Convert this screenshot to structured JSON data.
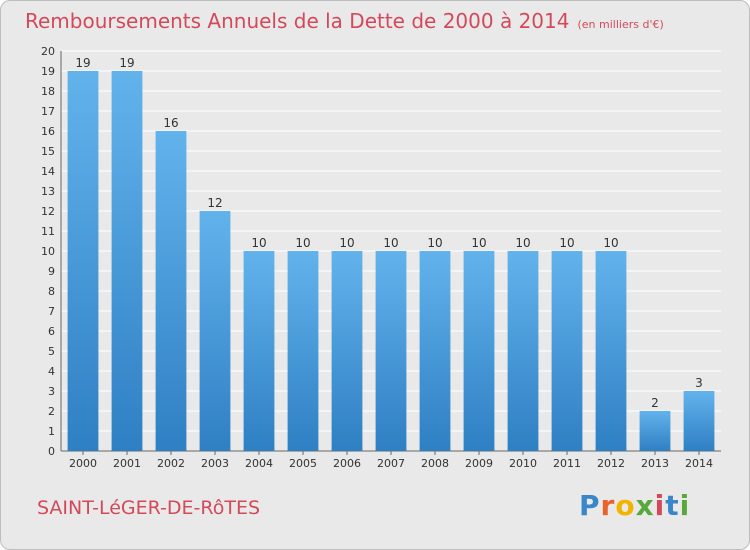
{
  "title": "Remboursements Annuels de la Dette de 2000 à 2014",
  "subtitle": "(en milliers d'€)",
  "commune": "SAINT-LéGER-DE-RôTES",
  "brand": {
    "letters": [
      "P",
      "r",
      "o",
      "x",
      "i",
      "t",
      "i"
    ],
    "colors": [
      "#3a86c8",
      "#e8622a",
      "#f2b400",
      "#58a83c",
      "#d4495a",
      "#3a86c8",
      "#58a83c"
    ]
  },
  "chart_data": {
    "type": "bar",
    "categories": [
      "2000",
      "2001",
      "2002",
      "2003",
      "2004",
      "2005",
      "2006",
      "2007",
      "2008",
      "2009",
      "2010",
      "2011",
      "2012",
      "2013",
      "2014"
    ],
    "values": [
      19,
      19,
      16,
      12,
      10,
      10,
      10,
      10,
      10,
      10,
      10,
      10,
      10,
      2,
      3
    ],
    "title": "Remboursements Annuels de la Dette de 2000 à 2014",
    "subtitle": "(en milliers d'€)",
    "xlabel": "",
    "ylabel": "",
    "ylim": [
      0,
      20
    ],
    "yticks": [
      0,
      1,
      2,
      3,
      4,
      5,
      6,
      7,
      8,
      9,
      10,
      11,
      12,
      13,
      14,
      15,
      16,
      17,
      18,
      19,
      20
    ],
    "grid": true,
    "colors": {
      "bar_light": "#62b3ec",
      "bar_dark": "#2f7fc4",
      "grid": "#ffffff"
    }
  }
}
